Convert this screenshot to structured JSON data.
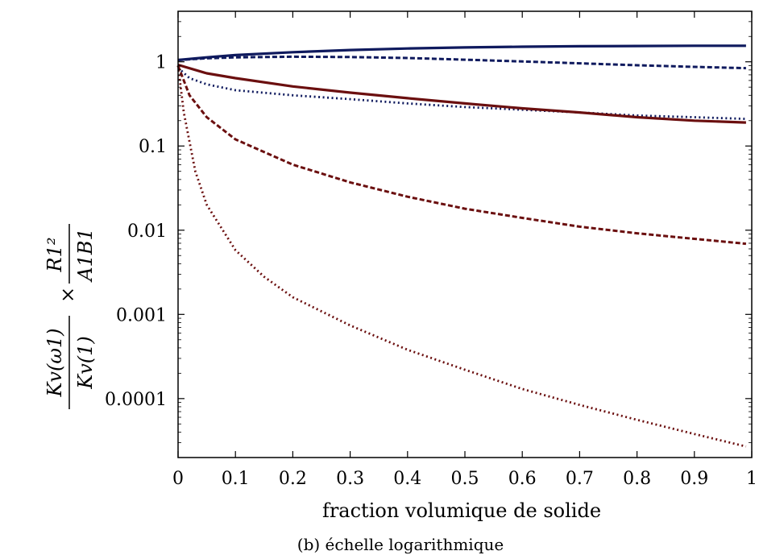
{
  "chart_data": {
    "type": "line",
    "title": "",
    "caption": "(b) échelle logarithmique",
    "xlabel": "fraction volumique de solide",
    "ylabel": {
      "left_num": "Kv(ω1)",
      "left_den": "Kv(1)",
      "times": "×",
      "right_num": "R1²",
      "right_den": "A1B1"
    },
    "xlim": [
      0,
      1
    ],
    "ylim_log10": [
      -4.7,
      0.6
    ],
    "y_scale": "log",
    "grid": false,
    "xticks": [
      0,
      0.1,
      0.2,
      0.3,
      0.4,
      0.5,
      0.6,
      0.7,
      0.8,
      0.9,
      1
    ],
    "xtick_labels": [
      "0",
      "0.1",
      "0.2",
      "0.3",
      "0.4",
      "0.5",
      "0.6",
      "0.7",
      "0.8",
      "0.9",
      "1"
    ],
    "yticks": [
      1,
      0.1,
      0.01,
      0.001,
      0.0001
    ],
    "ytick_labels": [
      "1",
      "0.1",
      "0.01",
      "0.001",
      "0.0001"
    ],
    "colors": {
      "blue": "#0f1a5e",
      "red": "#6b0f0f"
    },
    "series": [
      {
        "color": "blue",
        "style": "solid",
        "x": [
          0,
          0.05,
          0.1,
          0.2,
          0.3,
          0.4,
          0.5,
          0.6,
          0.7,
          0.8,
          0.9,
          0.99
        ],
        "y": [
          1.05,
          1.13,
          1.2,
          1.3,
          1.38,
          1.44,
          1.48,
          1.51,
          1.53,
          1.54,
          1.55,
          1.55
        ]
      },
      {
        "color": "blue",
        "style": "dashed",
        "x": [
          0,
          0.05,
          0.1,
          0.2,
          0.3,
          0.4,
          0.5,
          0.6,
          0.7,
          0.8,
          0.9,
          0.99
        ],
        "y": [
          1.05,
          1.1,
          1.13,
          1.15,
          1.14,
          1.11,
          1.06,
          1.01,
          0.96,
          0.91,
          0.87,
          0.84
        ]
      },
      {
        "color": "blue",
        "style": "dotted",
        "x": [
          0,
          0.02,
          0.05,
          0.1,
          0.2,
          0.3,
          0.4,
          0.5,
          0.6,
          0.7,
          0.8,
          0.9,
          0.99
        ],
        "y": [
          0.85,
          0.64,
          0.54,
          0.46,
          0.4,
          0.36,
          0.32,
          0.29,
          0.27,
          0.25,
          0.23,
          0.22,
          0.21
        ]
      },
      {
        "color": "red",
        "style": "solid",
        "x": [
          0,
          0.05,
          0.1,
          0.2,
          0.3,
          0.4,
          0.5,
          0.6,
          0.7,
          0.8,
          0.9,
          0.99
        ],
        "y": [
          0.92,
          0.73,
          0.64,
          0.51,
          0.43,
          0.37,
          0.32,
          0.28,
          0.25,
          0.22,
          0.2,
          0.19
        ]
      },
      {
        "color": "red",
        "style": "dashed",
        "x": [
          0,
          0.02,
          0.05,
          0.1,
          0.2,
          0.3,
          0.4,
          0.5,
          0.6,
          0.7,
          0.8,
          0.9,
          0.99
        ],
        "y": [
          0.9,
          0.4,
          0.22,
          0.12,
          0.06,
          0.037,
          0.025,
          0.018,
          0.014,
          0.011,
          0.0092,
          0.0079,
          0.0069
        ]
      },
      {
        "color": "red",
        "style": "dotted",
        "x": [
          0,
          0.01,
          0.03,
          0.05,
          0.1,
          0.15,
          0.2,
          0.3,
          0.4,
          0.5,
          0.6,
          0.7,
          0.8,
          0.9,
          0.99
        ],
        "y": [
          0.9,
          0.25,
          0.05,
          0.02,
          0.0058,
          0.0028,
          0.0016,
          0.00074,
          0.00038,
          0.00022,
          0.00013,
          8.4e-05,
          5.6e-05,
          3.8e-05,
          2.7e-05
        ]
      }
    ]
  }
}
